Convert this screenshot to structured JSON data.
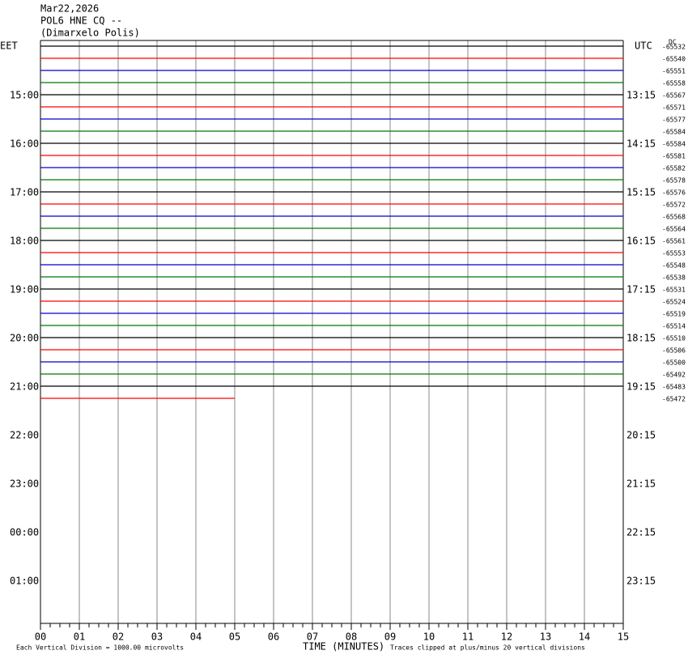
{
  "header": {
    "date": "Mar22,2026",
    "station": "POL6 HNE CQ --",
    "location": "(Dimarxelo Polis)"
  },
  "left_zone": "EET",
  "right_zone": "UTC",
  "dc_label": "DC",
  "trace_colors": [
    "#000000",
    "#ff0000",
    "#0000cc",
    "#007700"
  ],
  "traces": [
    -65532,
    -65540,
    -65551,
    -65558,
    -65567,
    -65571,
    -65577,
    -65584,
    -65584,
    -65581,
    -65582,
    -65578,
    -65576,
    -65572,
    -65568,
    -65564,
    -65561,
    -65553,
    -65548,
    -65538,
    -65531,
    -65524,
    -65519,
    -65514,
    -65510,
    -65506,
    -65500,
    -65492,
    -65483,
    -65472
  ],
  "last_trace_end_minute": 5,
  "hour_labels": {
    "left": [
      "15:00",
      "16:00",
      "17:00",
      "18:00",
      "19:00",
      "20:00",
      "21:00",
      "22:00",
      "23:00",
      "00:00",
      "01:00"
    ],
    "right": [
      "13:15",
      "14:15",
      "15:15",
      "16:15",
      "17:15",
      "18:15",
      "19:15",
      "20:15",
      "21:15",
      "22:15",
      "23:15"
    ]
  },
  "x_axis": {
    "ticks": [
      "00",
      "01",
      "02",
      "03",
      "04",
      "05",
      "06",
      "07",
      "08",
      "09",
      "10",
      "11",
      "12",
      "13",
      "14",
      "15"
    ],
    "label": "TIME (MINUTES)"
  },
  "footer": {
    "scale": "Each Vertical Division = 1000.00 microvolts",
    "clipping": "Traces clipped at plus/minus 20 vertical divisions"
  }
}
